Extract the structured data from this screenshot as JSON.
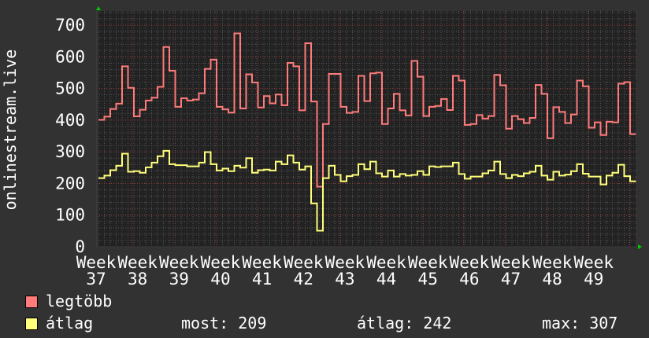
{
  "chart_data": {
    "type": "line",
    "step": true,
    "ylabel": "onlinestream.live",
    "ylim": [
      0,
      700
    ],
    "y_ticks": [
      0,
      100,
      200,
      300,
      400,
      500,
      600,
      700
    ],
    "y_minor_step": 20,
    "x_tick_labels": [
      "Week 37",
      "Week 38",
      "Week 39",
      "Week 40",
      "Week 41",
      "Week 42",
      "Week 43",
      "Week 44",
      "Week 45",
      "Week 46",
      "Week 47",
      "Week 48",
      "Week 49"
    ],
    "grid": true,
    "legend_placement": "bottom-left",
    "background_color": "#323232",
    "plot_background_color": "#222222",
    "major_grid_color": "#8a3a3a",
    "minor_grid_color": "#555555",
    "axis_arrow_color": "#00cc00",
    "series": [
      {
        "name": "legtöbb",
        "color": "#ff7b7b",
        "values": [
          401,
          411,
          435,
          452,
          570,
          502,
          412,
          433,
          462,
          471,
          505,
          631,
          556,
          442,
          469,
          462,
          465,
          485,
          562,
          591,
          442,
          434,
          424,
          674,
          437,
          545,
          519,
          440,
          476,
          453,
          481,
          447,
          581,
          570,
          431,
          643,
          459,
          190,
          388,
          546,
          546,
          442,
          423,
          426,
          540,
          460,
          548,
          550,
          388,
          437,
          483,
          431,
          415,
          587,
          537,
          413,
          442,
          445,
          467,
          432,
          540,
          525,
          385,
          388,
          416,
          405,
          413,
          543,
          510,
          373,
          413,
          403,
          391,
          407,
          511,
          483,
          343,
          441,
          426,
          391,
          418,
          525,
          507,
          376,
          393,
          353,
          395,
          393,
          515,
          520,
          356
        ]
      },
      {
        "name": "átlag",
        "color": "#ffff7b",
        "values": [
          217,
          225,
          242,
          256,
          294,
          237,
          239,
          234,
          251,
          266,
          286,
          303,
          261,
          258,
          258,
          254,
          254,
          266,
          299,
          261,
          241,
          247,
          239,
          256,
          250,
          280,
          234,
          242,
          244,
          241,
          269,
          261,
          289,
          266,
          244,
          254,
          137,
          51,
          217,
          256,
          227,
          207,
          223,
          227,
          261,
          245,
          269,
          232,
          222,
          241,
          222,
          230,
          225,
          227,
          239,
          227,
          254,
          252,
          254,
          254,
          266,
          230,
          215,
          222,
          222,
          232,
          241,
          269,
          230,
          217,
          227,
          223,
          232,
          237,
          256,
          225,
          212,
          237,
          225,
          228,
          239,
          261,
          231,
          222,
          222,
          197,
          225,
          234,
          259,
          223,
          207
        ]
      }
    ]
  },
  "legend": {
    "series1_label": "legtöbb",
    "series2_label": "átlag",
    "current": "most: 209",
    "average": "átlag: 242",
    "maximum": "max: 307"
  }
}
